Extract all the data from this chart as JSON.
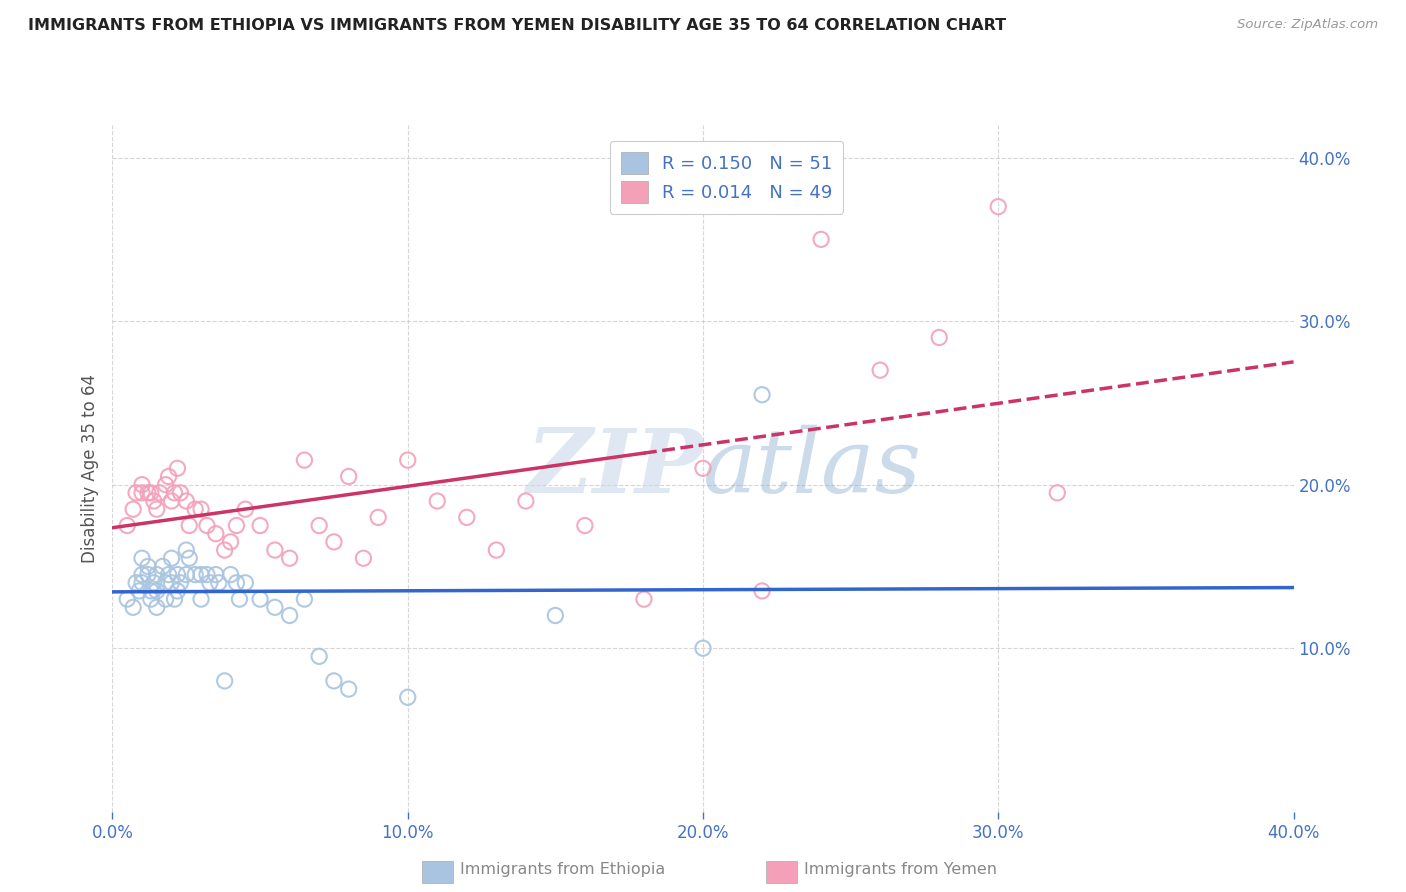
{
  "title": "IMMIGRANTS FROM ETHIOPIA VS IMMIGRANTS FROM YEMEN DISABILITY AGE 35 TO 64 CORRELATION CHART",
  "source_text": "Source: ZipAtlas.com",
  "ylabel": "Disability Age 35 to 64",
  "xlim": [
    0.0,
    0.4
  ],
  "ylim": [
    0.0,
    0.42
  ],
  "xticks": [
    0.0,
    0.1,
    0.2,
    0.3,
    0.4
  ],
  "yticks": [
    0.1,
    0.2,
    0.3,
    0.4
  ],
  "color_ethiopia": "#a8c4e0",
  "color_yemen": "#f4a0b8",
  "color_line_ethiopia": "#3366cc",
  "color_line_yemen": "#cc3366",
  "background_color": "#ffffff",
  "grid_color": "#cccccc",
  "watermark_color": "#c8d8ea",
  "ethiopia_x": [
    0.005,
    0.007,
    0.008,
    0.009,
    0.01,
    0.01,
    0.01,
    0.012,
    0.012,
    0.013,
    0.013,
    0.014,
    0.015,
    0.015,
    0.015,
    0.017,
    0.018,
    0.018,
    0.019,
    0.02,
    0.02,
    0.021,
    0.022,
    0.022,
    0.023,
    0.025,
    0.025,
    0.026,
    0.028,
    0.03,
    0.03,
    0.032,
    0.033,
    0.035,
    0.036,
    0.038,
    0.04,
    0.042,
    0.043,
    0.045,
    0.05,
    0.055,
    0.06,
    0.065,
    0.07,
    0.075,
    0.08,
    0.1,
    0.15,
    0.2,
    0.22
  ],
  "ethiopia_y": [
    0.13,
    0.125,
    0.14,
    0.135,
    0.155,
    0.145,
    0.14,
    0.15,
    0.145,
    0.135,
    0.13,
    0.14,
    0.145,
    0.135,
    0.125,
    0.15,
    0.14,
    0.13,
    0.145,
    0.155,
    0.14,
    0.13,
    0.145,
    0.135,
    0.14,
    0.16,
    0.145,
    0.155,
    0.145,
    0.145,
    0.13,
    0.145,
    0.14,
    0.145,
    0.14,
    0.08,
    0.145,
    0.14,
    0.13,
    0.14,
    0.13,
    0.125,
    0.12,
    0.13,
    0.095,
    0.08,
    0.075,
    0.07,
    0.12,
    0.1,
    0.255
  ],
  "yemen_x": [
    0.005,
    0.007,
    0.008,
    0.01,
    0.01,
    0.012,
    0.013,
    0.014,
    0.015,
    0.016,
    0.018,
    0.019,
    0.02,
    0.021,
    0.022,
    0.023,
    0.025,
    0.026,
    0.028,
    0.03,
    0.032,
    0.035,
    0.038,
    0.04,
    0.042,
    0.045,
    0.05,
    0.055,
    0.06,
    0.065,
    0.07,
    0.075,
    0.08,
    0.085,
    0.09,
    0.1,
    0.11,
    0.12,
    0.13,
    0.14,
    0.16,
    0.18,
    0.2,
    0.22,
    0.24,
    0.26,
    0.28,
    0.3,
    0.32
  ],
  "yemen_y": [
    0.175,
    0.185,
    0.195,
    0.2,
    0.195,
    0.195,
    0.195,
    0.19,
    0.185,
    0.195,
    0.2,
    0.205,
    0.19,
    0.195,
    0.21,
    0.195,
    0.19,
    0.175,
    0.185,
    0.185,
    0.175,
    0.17,
    0.16,
    0.165,
    0.175,
    0.185,
    0.175,
    0.16,
    0.155,
    0.215,
    0.175,
    0.165,
    0.205,
    0.155,
    0.18,
    0.215,
    0.19,
    0.18,
    0.16,
    0.19,
    0.175,
    0.13,
    0.21,
    0.135,
    0.35,
    0.27,
    0.29,
    0.37,
    0.195
  ]
}
